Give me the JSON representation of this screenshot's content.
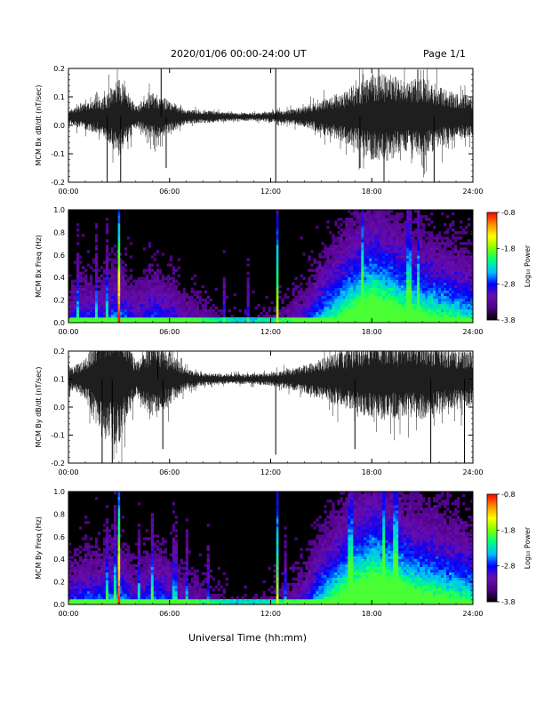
{
  "header": {
    "title": "2020/01/06  00:00-24:00 UT",
    "page": "Page 1/1"
  },
  "footer": {
    "xlabel": "Universal Time (hh:mm)"
  },
  "colors": {
    "trace": "#000000",
    "background": "#ffffff",
    "colorbar": [
      "#000000",
      "#4b0082",
      "#6a0dad",
      "#0000ff",
      "#00bfff",
      "#00ff7f",
      "#7fff00",
      "#ffff00",
      "#ff8c00",
      "#ff0000"
    ]
  },
  "chart_data": [
    {
      "type": "line",
      "ylabel": "MCM Bx dB/dt (nT/sec)",
      "xlim": [
        0,
        24
      ],
      "ylim": [
        -0.2,
        0.2
      ],
      "x_ticks": [
        "00:00",
        "06:00",
        "12:00",
        "18:00",
        "24:00"
      ],
      "y_ticks": [
        "-0.2",
        "-0.1",
        "0.0",
        "0.1",
        "0.2"
      ],
      "baseline": 0.03,
      "approx_amplitude_by_hour": [
        0.02,
        0.04,
        0.05,
        0.12,
        0.03,
        0.07,
        0.05,
        0.02,
        0.02,
        0.015,
        0.012,
        0.012,
        0.015,
        0.02,
        0.03,
        0.05,
        0.07,
        0.09,
        0.13,
        0.13,
        0.1,
        0.12,
        0.09,
        0.07,
        0.06
      ],
      "spikes": [
        {
          "x": 2.3,
          "y": -0.2
        },
        {
          "x": 3.1,
          "y": -0.2
        },
        {
          "x": 5.5,
          "y": 0.2
        },
        {
          "x": 5.8,
          "y": -0.15
        },
        {
          "x": 12.3,
          "y": 0.2
        },
        {
          "x": 12.3,
          "y": -0.2
        },
        {
          "x": 17.3,
          "y": -0.15
        },
        {
          "x": 21.7,
          "y": -0.2
        }
      ]
    },
    {
      "type": "heatmap",
      "ylabel": "MCM Bx Freq (Hz)",
      "xlim": [
        0,
        24
      ],
      "ylim": [
        0,
        1.0
      ],
      "x_ticks": [
        "00:00",
        "06:00",
        "12:00",
        "18:00",
        "24:00"
      ],
      "y_ticks": [
        "0.0",
        "0.2",
        "0.4",
        "0.6",
        "0.8",
        "1.0"
      ],
      "colorbar": {
        "label": "Log₁₀ Power",
        "ticks": [
          "-0.8",
          "-1.8",
          "-2.8",
          "-3.8"
        ],
        "range": [
          -3.8,
          -0.8
        ]
      },
      "activity_by_hour": [
        0.3,
        0.35,
        0.35,
        0.45,
        0.3,
        0.4,
        0.35,
        0.25,
        0.2,
        0.15,
        0.12,
        0.12,
        0.15,
        0.2,
        0.3,
        0.5,
        0.65,
        0.8,
        0.9,
        0.85,
        0.75,
        0.7,
        0.65,
        0.6,
        0.55
      ],
      "vertical_stripes": [
        {
          "x": 3.0,
          "power": -0.8
        },
        {
          "x": 12.4,
          "power": -1.5
        }
      ]
    },
    {
      "type": "line",
      "ylabel": "MCM By dB/dt (nT/sec)",
      "xlim": [
        0,
        24
      ],
      "ylim": [
        -0.2,
        0.2
      ],
      "x_ticks": [
        "00:00",
        "06:00",
        "12:00",
        "18:00",
        "24:00"
      ],
      "y_ticks": [
        "-0.2",
        "-0.1",
        "0.0",
        "0.1",
        "0.2"
      ],
      "baseline": 0.1,
      "approx_amplitude_by_hour": [
        0.03,
        0.06,
        0.18,
        0.2,
        0.05,
        0.12,
        0.08,
        0.03,
        0.02,
        0.015,
        0.015,
        0.015,
        0.02,
        0.03,
        0.04,
        0.06,
        0.08,
        0.1,
        0.12,
        0.12,
        0.11,
        0.12,
        0.1,
        0.09,
        0.08
      ],
      "spikes": [
        {
          "x": 2.0,
          "y": -0.2
        },
        {
          "x": 2.6,
          "y": -0.2
        },
        {
          "x": 5.3,
          "y": 0.2
        },
        {
          "x": 5.6,
          "y": -0.15
        },
        {
          "x": 12.3,
          "y": -0.17
        },
        {
          "x": 17.0,
          "y": -0.15
        },
        {
          "x": 21.5,
          "y": -0.2
        },
        {
          "x": 23.5,
          "y": -0.2
        }
      ]
    },
    {
      "type": "heatmap",
      "ylabel": "MCM By Freq (Hz)",
      "xlim": [
        0,
        24
      ],
      "ylim": [
        0,
        1.0
      ],
      "x_ticks": [
        "00:00",
        "06:00",
        "12:00",
        "18:00",
        "24:00"
      ],
      "y_ticks": [
        "0.0",
        "0.2",
        "0.4",
        "0.6",
        "0.8",
        "1.0"
      ],
      "colorbar": {
        "label": "Log₁₀ Power",
        "ticks": [
          "-0.8",
          "-1.8",
          "-2.8",
          "-3.8"
        ],
        "range": [
          -3.8,
          -0.8
        ]
      },
      "activity_by_hour": [
        0.35,
        0.4,
        0.4,
        0.5,
        0.3,
        0.45,
        0.35,
        0.25,
        0.2,
        0.15,
        0.12,
        0.12,
        0.15,
        0.2,
        0.3,
        0.55,
        0.7,
        0.85,
        0.95,
        0.9,
        0.8,
        0.75,
        0.7,
        0.65,
        0.6
      ],
      "vertical_stripes": [
        {
          "x": 3.0,
          "power": -0.8
        },
        {
          "x": 12.4,
          "power": -1.5
        }
      ]
    }
  ]
}
